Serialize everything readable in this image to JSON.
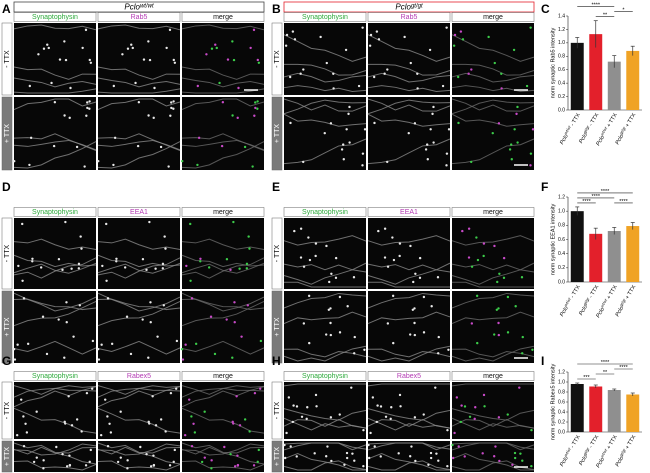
{
  "panels": [
    {
      "letter": "A",
      "genotype": {
        "gene": "Pclo",
        "allele": "wt/wt"
      },
      "channels": [
        "Synaptophysin",
        "Rab5",
        "merge"
      ],
      "rows": [
        "- TTX",
        "+ TTX"
      ]
    },
    {
      "letter": "B",
      "genotype": {
        "gene": "Pclo",
        "allele": "gt/gt"
      },
      "channels": [
        "Synaptophysin",
        "Rab5",
        "merge"
      ],
      "rows": [
        "- TTX",
        "+ TTX"
      ]
    },
    {
      "letter": "D",
      "channels": [
        "Synaptophysin",
        "EEA1",
        "merge"
      ],
      "rows": [
        "- TTX",
        "+ TTX"
      ]
    },
    {
      "letter": "E",
      "channels": [
        "Synaptophysin",
        "EEA1",
        "merge"
      ],
      "rows": [
        "- TTX",
        "+ TTX"
      ]
    },
    {
      "letter": "G",
      "channels": [
        "Synaptophysin",
        "Rabex5",
        "merge"
      ],
      "rows": [
        "- TTX",
        "+ TTX"
      ]
    },
    {
      "letter": "H",
      "channels": [
        "Synaptophysin",
        "Rabex5",
        "merge"
      ],
      "rows": [
        "- TTX",
        "+ TTX"
      ]
    }
  ],
  "chart_data": [
    {
      "type": "bar",
      "letter": "C",
      "y_label": "norm synaptic Rab5 intensity",
      "categories": [
        {
          "gene": "Pclo",
          "allele": "wt/wt",
          "treatment": "- TTX"
        },
        {
          "gene": "Pclo",
          "allele": "gt/gt",
          "treatment": "- TTX"
        },
        {
          "gene": "Pclo",
          "allele": "wt/wt",
          "treatment": "+ TTX"
        },
        {
          "gene": "Pclo",
          "allele": "gt/gt",
          "treatment": "+ TTX"
        }
      ],
      "values": [
        1.0,
        1.13,
        0.72,
        0.88
      ],
      "errors": [
        0.08,
        0.2,
        0.09,
        0.07
      ],
      "colors": [
        "#111111",
        "#e3202b",
        "#8f8f8f",
        "#f0a325"
      ],
      "ylim": [
        0,
        1.4
      ],
      "yticks": [
        {
          "value": 0,
          "label": "0.0"
        },
        {
          "value": 0.2,
          "label": "0.2"
        },
        {
          "value": 0.4,
          "label": "0.4"
        },
        {
          "value": 0.6,
          "label": "0.6"
        },
        {
          "value": 0.8,
          "label": "0.8"
        },
        {
          "value": 1.0,
          "label": "1.0"
        },
        {
          "value": 1.2,
          "label": "1.2"
        },
        {
          "value": 1.4,
          "label": "1.4"
        }
      ],
      "significance": [
        {
          "from": 1,
          "to": 2,
          "label": "**"
        },
        {
          "from": 2,
          "to": 3,
          "label": "*"
        },
        {
          "from": 0,
          "to": 2,
          "label": "****"
        }
      ]
    },
    {
      "type": "bar",
      "letter": "F",
      "y_label": "norm synaptic EEA1 intensity",
      "categories": [
        {
          "gene": "Pclo",
          "allele": "wt/wt",
          "treatment": "- TTX"
        },
        {
          "gene": "Pclo",
          "allele": "gt/gt",
          "treatment": "- TTX"
        },
        {
          "gene": "Pclo",
          "allele": "wt/wt",
          "treatment": "+ TTX"
        },
        {
          "gene": "Pclo",
          "allele": "gt/gt",
          "treatment": "+ TTX"
        }
      ],
      "values": [
        1.0,
        0.68,
        0.72,
        0.79
      ],
      "errors": [
        0.06,
        0.08,
        0.05,
        0.05
      ],
      "colors": [
        "#111111",
        "#e3202b",
        "#8f8f8f",
        "#f0a325"
      ],
      "ylim": [
        0,
        1.2
      ],
      "yticks": [
        {
          "value": 0,
          "label": "0.0"
        },
        {
          "value": 0.2,
          "label": "0.2"
        },
        {
          "value": 0.4,
          "label": "0.4"
        },
        {
          "value": 0.6,
          "label": "0.6"
        },
        {
          "value": 0.8,
          "label": "0.8"
        },
        {
          "value": 1.0,
          "label": "1.0"
        },
        {
          "value": 1.2,
          "label": "1.2"
        }
      ],
      "significance": [
        {
          "from": 0,
          "to": 1,
          "label": "****"
        },
        {
          "from": 2,
          "to": 3,
          "label": "****"
        },
        {
          "from": 0,
          "to": 2,
          "label": "****"
        },
        {
          "from": 0,
          "to": 3,
          "label": "****"
        }
      ]
    },
    {
      "type": "bar",
      "letter": "I",
      "y_label": "norm synaptic Rabex5 intensity",
      "categories": [
        {
          "gene": "Pclo",
          "allele": "wt/wt",
          "treatment": "- TTX"
        },
        {
          "gene": "Pclo",
          "allele": "gt/gt",
          "treatment": "- TTX"
        },
        {
          "gene": "Pclo",
          "allele": "wt/wt",
          "treatment": "+ TTX"
        },
        {
          "gene": "Pclo",
          "allele": "gt/gt",
          "treatment": "+ TTX"
        }
      ],
      "values": [
        0.96,
        0.91,
        0.84,
        0.75
      ],
      "errors": [
        0.02,
        0.03,
        0.02,
        0.03
      ],
      "colors": [
        "#111111",
        "#e3202b",
        "#8f8f8f",
        "#f0a325"
      ],
      "ylim": [
        0,
        1.2
      ],
      "yticks": [
        {
          "value": 0,
          "label": "0.0"
        },
        {
          "value": 0.2,
          "label": "0.2"
        },
        {
          "value": 0.4,
          "label": "0.4"
        },
        {
          "value": 0.6,
          "label": "0.6"
        },
        {
          "value": 0.8,
          "label": "0.8"
        },
        {
          "value": 1.0,
          "label": "1.0"
        },
        {
          "value": 1.2,
          "label": "1.2"
        }
      ],
      "significance": [
        {
          "from": 0,
          "to": 1,
          "label": "***"
        },
        {
          "from": 1,
          "to": 2,
          "label": "**"
        },
        {
          "from": 2,
          "to": 3,
          "label": "****"
        },
        {
          "from": 0,
          "to": 3,
          "label": "****"
        }
      ]
    }
  ]
}
